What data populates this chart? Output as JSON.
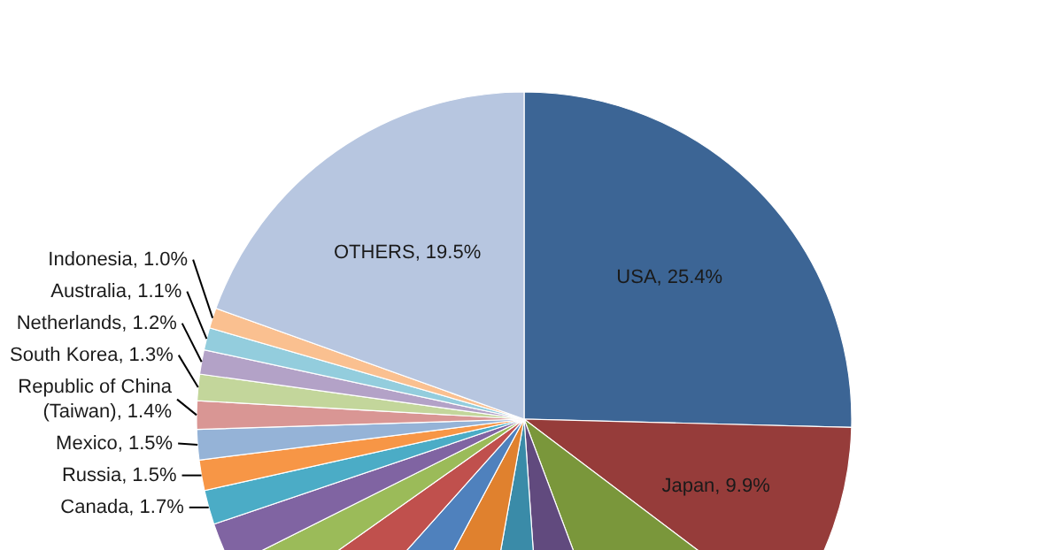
{
  "chart_data": {
    "type": "pie",
    "categories": [
      "USA",
      "Japan",
      null,
      null,
      null,
      null,
      null,
      null,
      null,
      null,
      "Canada",
      "Russia",
      "Mexico",
      "Republic of China (Taiwan)",
      "South Korea",
      "Netherlands",
      "Australia",
      "Indonesia",
      "OTHERS"
    ],
    "values": [
      25.4,
      9.9,
      9.0,
      4.6,
      3.9,
      5.0,
      3.8,
      3.6,
      2.4,
      2.2,
      1.7,
      1.5,
      1.5,
      1.4,
      1.3,
      1.2,
      1.1,
      1.0,
      19.5
    ],
    "value_labels": [
      "25.4%",
      "9.9%",
      null,
      null,
      null,
      null,
      null,
      null,
      null,
      null,
      "1.7%",
      "1.5%",
      "1.5%",
      "1.4%",
      "1.3%",
      "1.2%",
      "1.1%",
      "1.0%",
      "19.5%"
    ],
    "colors": [
      "#3c6595",
      "#963c3a",
      "#7a973b",
      "#614a7e",
      "#3a8ba8",
      "#e0812e",
      "#4f81bd",
      "#c0504d",
      "#9bbb59",
      "#8064a2",
      "#4bacc6",
      "#f79646",
      "#95b3d7",
      "#d99694",
      "#c3d69b",
      "#b3a2c7",
      "#93cddd",
      "#fac090",
      "#b7c6e0"
    ]
  }
}
